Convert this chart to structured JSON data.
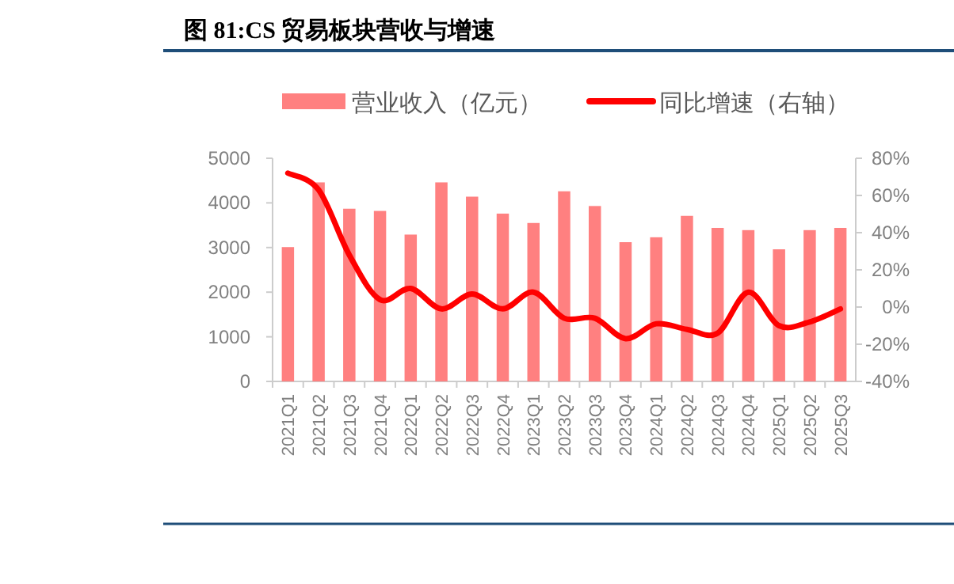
{
  "chart_data": {
    "type": "bar",
    "title": "图 81:CS 贸易板块营收与增速",
    "categories": [
      "2021Q1",
      "2021Q2",
      "2021Q3",
      "2021Q4",
      "2022Q1",
      "2022Q2",
      "2022Q3",
      "2022Q4",
      "2023Q1",
      "2023Q2",
      "2023Q3",
      "2023Q4",
      "2024Q1",
      "2024Q2",
      "2024Q3",
      "2024Q4",
      "2025Q1",
      "2025Q2",
      "2025Q3"
    ],
    "series": [
      {
        "name": "营业收入（亿元）",
        "color": "#ff8080",
        "values": [
          3010,
          4460,
          3870,
          3820,
          3290,
          4460,
          4140,
          3760,
          3550,
          4260,
          3930,
          3120,
          3230,
          3710,
          3440,
          3390,
          2960,
          3390,
          3440
        ]
      },
      {
        "name": "同比增速（右轴）",
        "type": "line",
        "axis": "y2",
        "color": "#ff0000",
        "values": [
          72,
          63,
          28,
          4,
          10,
          -1,
          7,
          -1,
          8,
          -6,
          -6,
          -17,
          -9,
          -12,
          -14,
          8,
          -10,
          -8,
          -1
        ]
      }
    ],
    "ylim": [
      0,
      5000
    ],
    "yticks": [
      0,
      1000,
      2000,
      3000,
      4000,
      5000
    ],
    "y2lim": [
      -40,
      80
    ],
    "y2ticks": [
      {
        "value": -40,
        "label": "-40%"
      },
      {
        "value": -20,
        "label": "-20%"
      },
      {
        "value": 0,
        "label": "0%"
      },
      {
        "value": 20,
        "label": "20%"
      },
      {
        "value": 40,
        "label": "40%"
      },
      {
        "value": 60,
        "label": "60%"
      },
      {
        "value": 80,
        "label": "80%"
      }
    ],
    "legend": "top",
    "grid": false
  }
}
